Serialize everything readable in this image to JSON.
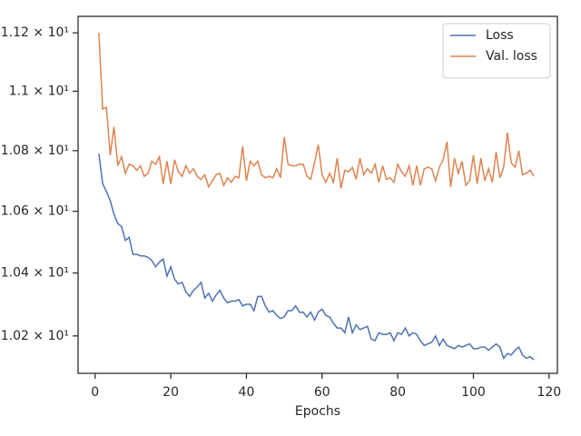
{
  "chart_data": {
    "type": "line",
    "x_label": "Epochs",
    "log_y": true,
    "legend": "upper right",
    "xlim": [
      -4.5,
      122.2
    ],
    "xticks": [
      0,
      20,
      40,
      60,
      80,
      100,
      120
    ],
    "ylim": [
      10.083,
      11.257
    ],
    "yticks": [
      {
        "value": 10.2,
        "label": "1.02 × 10¹"
      },
      {
        "value": 10.4,
        "label": "1.04 × 10¹"
      },
      {
        "value": 10.6,
        "label": "1.06 × 10¹"
      },
      {
        "value": 10.8,
        "label": "1.08 × 10¹"
      },
      {
        "value": 11,
        "label": "1.1 × 10¹"
      },
      {
        "value": 11.2,
        "label": "1.12 × 10¹"
      }
    ],
    "x": [
      1,
      2,
      3,
      4,
      5,
      6,
      7,
      8,
      9,
      10,
      11,
      12,
      13,
      14,
      15,
      16,
      17,
      18,
      19,
      20,
      21,
      22,
      23,
      24,
      25,
      26,
      27,
      28,
      29,
      30,
      31,
      32,
      33,
      34,
      35,
      36,
      37,
      38,
      39,
      40,
      41,
      42,
      43,
      44,
      45,
      46,
      47,
      48,
      49,
      50,
      51,
      52,
      53,
      54,
      55,
      56,
      57,
      58,
      59,
      60,
      61,
      62,
      63,
      64,
      65,
      66,
      67,
      68,
      69,
      70,
      71,
      72,
      73,
      74,
      75,
      76,
      77,
      78,
      79,
      80,
      81,
      82,
      83,
      84,
      85,
      86,
      87,
      88,
      89,
      90,
      91,
      92,
      93,
      94,
      95,
      96,
      97,
      98,
      99,
      100,
      101,
      102,
      103,
      104,
      105,
      106,
      107,
      108,
      109,
      110,
      111,
      112,
      113,
      114,
      115,
      116
    ],
    "series": [
      {
        "name": "Loss",
        "color": "#4c72b0",
        "values": [
          10.79,
          10.69,
          10.665,
          10.635,
          10.59,
          10.56,
          10.55,
          10.505,
          10.515,
          10.46,
          10.46,
          10.455,
          10.455,
          10.45,
          10.44,
          10.42,
          10.435,
          10.445,
          10.39,
          10.42,
          10.38,
          10.365,
          10.37,
          10.34,
          10.325,
          10.345,
          10.355,
          10.37,
          10.32,
          10.335,
          10.31,
          10.33,
          10.345,
          10.32,
          10.305,
          10.31,
          10.31,
          10.315,
          10.295,
          10.3,
          10.3,
          10.28,
          10.325,
          10.325,
          10.295,
          10.275,
          10.28,
          10.265,
          10.255,
          10.26,
          10.28,
          10.28,
          10.295,
          10.275,
          10.275,
          10.26,
          10.275,
          10.25,
          10.275,
          10.285,
          10.265,
          10.26,
          10.24,
          10.225,
          10.225,
          10.21,
          10.26,
          10.21,
          10.235,
          10.22,
          10.225,
          10.23,
          10.19,
          10.185,
          10.21,
          10.205,
          10.205,
          10.21,
          10.185,
          10.21,
          10.205,
          10.225,
          10.2,
          10.21,
          10.205,
          10.185,
          10.17,
          10.175,
          10.18,
          10.2,
          10.17,
          10.19,
          10.17,
          10.165,
          10.16,
          10.17,
          10.165,
          10.17,
          10.175,
          10.16,
          10.16,
          10.165,
          10.165,
          10.155,
          10.165,
          10.175,
          10.165,
          10.13,
          10.145,
          10.14,
          10.155,
          10.165,
          10.14,
          10.13,
          10.135,
          10.125
        ]
      },
      {
        "name": "Val. loss",
        "color": "#dd8452",
        "values": [
          11.2,
          10.94,
          10.945,
          10.785,
          10.88,
          10.75,
          10.78,
          10.725,
          10.755,
          10.75,
          10.735,
          10.75,
          10.715,
          10.725,
          10.765,
          10.755,
          10.78,
          10.69,
          10.765,
          10.69,
          10.77,
          10.73,
          10.715,
          10.75,
          10.725,
          10.74,
          10.715,
          10.705,
          10.72,
          10.68,
          10.7,
          10.72,
          10.725,
          10.685,
          10.71,
          10.695,
          10.715,
          10.71,
          10.815,
          10.7,
          10.765,
          10.75,
          10.765,
          10.72,
          10.71,
          10.715,
          10.71,
          10.74,
          10.71,
          10.845,
          10.755,
          10.75,
          10.75,
          10.755,
          10.755,
          10.715,
          10.705,
          10.76,
          10.82,
          10.72,
          10.695,
          10.725,
          10.695,
          10.775,
          10.675,
          10.735,
          10.73,
          10.745,
          10.705,
          10.775,
          10.72,
          10.74,
          10.725,
          10.755,
          10.695,
          10.75,
          10.705,
          10.71,
          10.695,
          10.755,
          10.73,
          10.715,
          10.75,
          10.685,
          10.75,
          10.685,
          10.74,
          10.745,
          10.74,
          10.7,
          10.745,
          10.77,
          10.83,
          10.68,
          10.775,
          10.725,
          10.765,
          10.685,
          10.7,
          10.785,
          10.69,
          10.775,
          10.7,
          10.74,
          10.695,
          10.795,
          10.71,
          10.745,
          10.86,
          10.76,
          10.745,
          10.8,
          10.72,
          10.725,
          10.735,
          10.715
        ]
      }
    ]
  }
}
